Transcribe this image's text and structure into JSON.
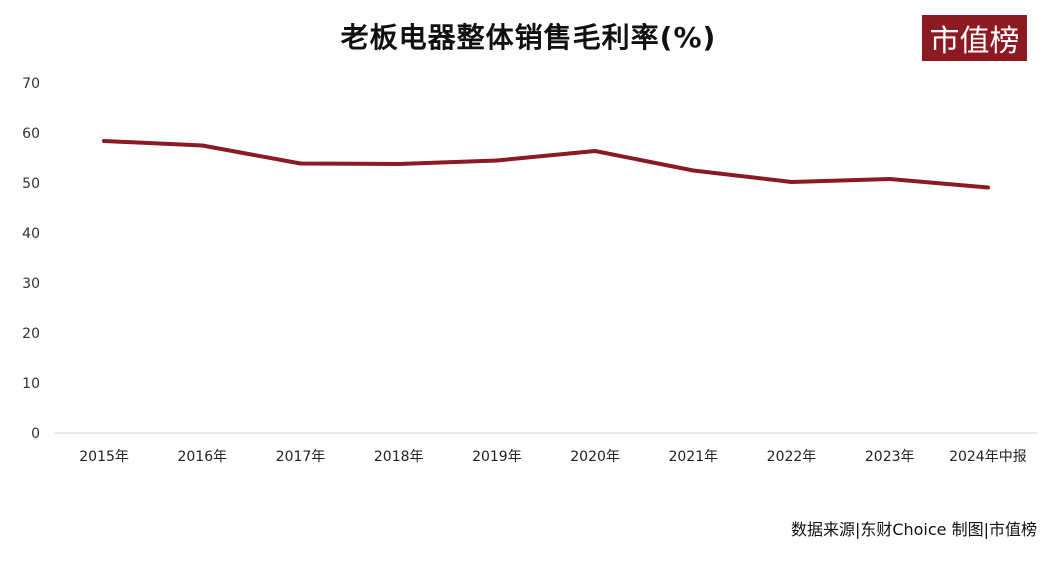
{
  "header": {
    "title": "老板电器整体销售毛利率(%)",
    "logo_text": "市值榜"
  },
  "footer": {
    "source": "数据来源|东财Choice 制图|市值榜"
  },
  "chart_data": {
    "type": "line",
    "title": "老板电器整体销售毛利率(%)",
    "xlabel": "",
    "ylabel": "",
    "categories": [
      "2015年",
      "2016年",
      "2017年",
      "2018年",
      "2019年",
      "2020年",
      "2021年",
      "2022年",
      "2023年",
      "2024年中报"
    ],
    "series": [
      {
        "values": [
          58.4,
          57.5,
          53.9,
          53.8,
          54.5,
          56.4,
          52.5,
          50.2,
          50.8,
          49.1
        ],
        "color": "#8b1a22"
      }
    ],
    "ylim": [
      0,
      70
    ],
    "yticks": [
      0,
      10,
      20,
      30,
      40,
      50,
      60,
      70
    ],
    "grid": false,
    "legend": "none"
  }
}
